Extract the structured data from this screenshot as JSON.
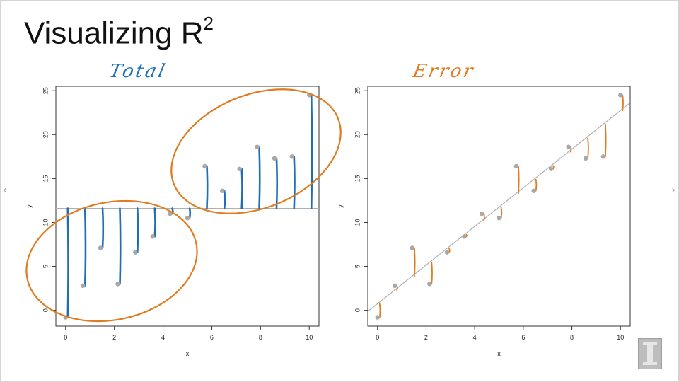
{
  "slide": {
    "title": "Visualizing R",
    "title_sup": "2",
    "nav_prev": "‹",
    "nav_next": "›",
    "logo_icon": "university-block-i-logo"
  },
  "annotations": {
    "total": "Total",
    "error": "Error",
    "total_color": "#1f6fb2",
    "error_color": "#e07b20"
  },
  "chart_data": [
    {
      "type": "scatter",
      "name": "total",
      "xlabel": "x",
      "ylabel": "y",
      "xlim": [
        -0.4,
        10.4
      ],
      "ylim": [
        -1.8,
        25.5
      ],
      "xticks": [
        0,
        2,
        4,
        6,
        8,
        10
      ],
      "yticks": [
        0,
        5,
        10,
        15,
        20,
        25
      ],
      "points": [
        {
          "x": 0,
          "y": -0.8
        },
        {
          "x": 0.71,
          "y": 2.8
        },
        {
          "x": 1.43,
          "y": 7.1
        },
        {
          "x": 2.14,
          "y": 3.0
        },
        {
          "x": 2.86,
          "y": 6.6
        },
        {
          "x": 3.57,
          "y": 8.4
        },
        {
          "x": 4.29,
          "y": 11.0
        },
        {
          "x": 5.0,
          "y": 10.5
        },
        {
          "x": 5.71,
          "y": 16.4
        },
        {
          "x": 6.43,
          "y": 13.6
        },
        {
          "x": 7.14,
          "y": 16.1
        },
        {
          "x": 7.86,
          "y": 18.6
        },
        {
          "x": 8.57,
          "y": 17.3
        },
        {
          "x": 9.29,
          "y": 17.5
        },
        {
          "x": 10.0,
          "y": 24.5
        }
      ],
      "mean_line": 11.6,
      "line_color": "#b0b0b0",
      "point_color": "#a8a8a8",
      "grid": false
    },
    {
      "type": "scatter",
      "name": "error",
      "xlabel": "x",
      "ylabel": "y",
      "xlim": [
        -0.4,
        10.4
      ],
      "ylim": [
        -1.8,
        25.5
      ],
      "xticks": [
        0,
        2,
        4,
        6,
        8,
        10
      ],
      "yticks": [
        0,
        5,
        10,
        15,
        20,
        25
      ],
      "points": [
        {
          "x": 0,
          "y": -0.8
        },
        {
          "x": 0.71,
          "y": 2.8
        },
        {
          "x": 1.43,
          "y": 7.1
        },
        {
          "x": 2.14,
          "y": 3.0
        },
        {
          "x": 2.86,
          "y": 6.6
        },
        {
          "x": 3.57,
          "y": 8.4
        },
        {
          "x": 4.29,
          "y": 11.0
        },
        {
          "x": 5.0,
          "y": 10.5
        },
        {
          "x": 5.71,
          "y": 16.4
        },
        {
          "x": 6.43,
          "y": 13.6
        },
        {
          "x": 7.14,
          "y": 16.1
        },
        {
          "x": 7.86,
          "y": 18.6
        },
        {
          "x": 8.57,
          "y": 17.3
        },
        {
          "x": 9.29,
          "y": 17.5
        },
        {
          "x": 10.0,
          "y": 24.5
        }
      ],
      "regression_line": {
        "intercept": 0.75,
        "slope": 2.2
      },
      "line_color": "#b0b0b0",
      "point_color": "#a8a8a8",
      "grid": false
    }
  ]
}
